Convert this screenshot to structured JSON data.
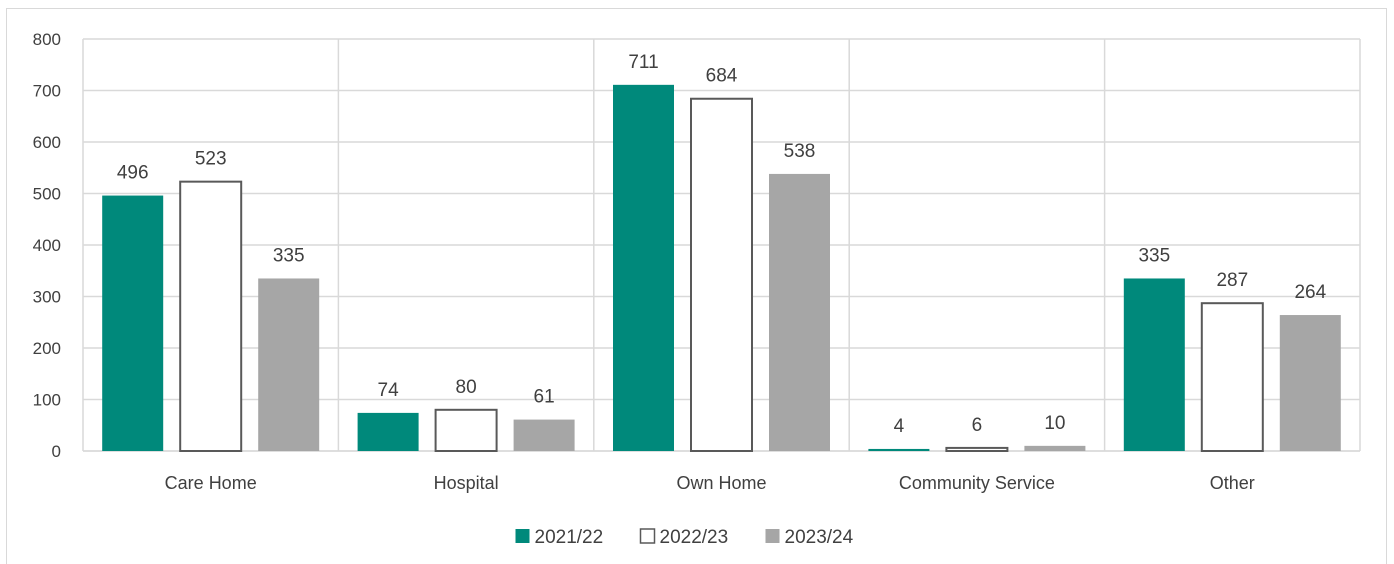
{
  "chart_data": {
    "type": "bar",
    "categories": [
      "Care Home",
      "Hospital",
      "Own Home",
      "Community Service",
      "Other"
    ],
    "series": [
      {
        "name": "2021/22",
        "values": [
          496,
          74,
          711,
          4,
          335
        ],
        "color": "#00897b",
        "style": "filled"
      },
      {
        "name": "2022/23",
        "values": [
          523,
          80,
          684,
          6,
          287
        ],
        "color": "#ffffff",
        "stroke": "#595959",
        "style": "outline"
      },
      {
        "name": "2023/24",
        "values": [
          335,
          61,
          538,
          10,
          264
        ],
        "color": "#a6a6a6",
        "style": "filled"
      }
    ],
    "yticks": [
      0,
      100,
      200,
      300,
      400,
      500,
      600,
      700,
      800
    ],
    "ylim": [
      0,
      800
    ],
    "grid": true,
    "legend_position": "bottom",
    "title": "",
    "xlabel": "",
    "ylabel": ""
  }
}
